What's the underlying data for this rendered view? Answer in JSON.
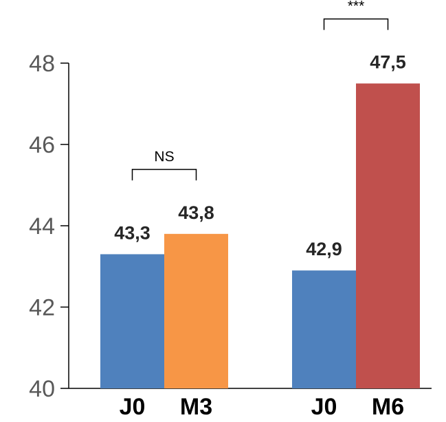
{
  "chart_data": {
    "type": "bar",
    "title": "",
    "xlabel": "",
    "ylabel": "",
    "ylim": [
      40,
      48
    ],
    "yticks": [
      40,
      42,
      44,
      46,
      48
    ],
    "grid": false,
    "bars": [
      {
        "category": "J0",
        "value": 43.3,
        "value_label": "43,3",
        "color": "#4f81bd"
      },
      {
        "category": "M3",
        "value": 43.8,
        "value_label": "43,8",
        "color": "#f79646"
      },
      {
        "category": "J0",
        "value": 42.9,
        "value_label": "42,9",
        "color": "#4f81bd"
      },
      {
        "category": "M6",
        "value": 47.5,
        "value_label": "47,5",
        "color": "#c0504d"
      }
    ],
    "annotations": [
      {
        "label": "NS",
        "from_bar": 0,
        "to_bar": 1
      },
      {
        "label": "***",
        "from_bar": 2,
        "to_bar": 3
      }
    ]
  }
}
